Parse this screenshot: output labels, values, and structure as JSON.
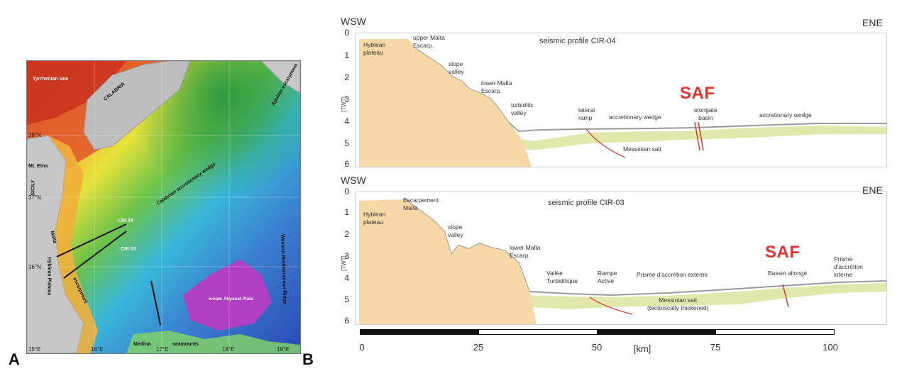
{
  "panels": {
    "a_letter": "A",
    "b_letter": "B"
  },
  "map": {
    "labels": {
      "tyrrhenian": "Tyrrhenian Sea",
      "calabria": "CALABRIA",
      "sicily": "SICILY",
      "etna": "Mt. Etna",
      "malta": "Malta",
      "hyblean": "Hyblean Plateau",
      "cir04": "CIR 04",
      "cir03": "CIR 03",
      "calabrian_wedge": "Calabrian accretionary wedge",
      "ionian_plain": "Ionian Abyssal Plain",
      "medina": "Medina",
      "seamounts": "seamounts",
      "apulian": "Apulian escarpment",
      "mediterranean_ridge": "Western Mediterranean Ridge",
      "escarpment": "escarpment"
    },
    "lat_labels": [
      "38°N",
      "37°N",
      "36°N"
    ],
    "lon_labels": [
      "15°E",
      "16°E",
      "17°E",
      "18°E",
      "19°E"
    ]
  },
  "profile1": {
    "title": "seismic profile CIR-04",
    "dir_left": "WSW",
    "dir_right": "ENE",
    "axis_label": "[TWT]",
    "ticks": [
      "0",
      "1",
      "2",
      "3",
      "4",
      "5",
      "6"
    ],
    "labels": {
      "hyblean": "Hyblean\nplateau",
      "upper_malta": "upper Malta\nEscarp.",
      "slope_valley": "slope\nvalley",
      "lower_malta": "lower Malta\nEscarp.",
      "turbiditic": "turbiditic\nvalley",
      "lateral_ramp": "lateral\nramp",
      "accretionary1": "accretionary wedge",
      "elongate_basin": "elongate\nbasin",
      "accretionary2": "accretionary wedge",
      "messinian": "Messinian salt"
    },
    "saf": "SAF"
  },
  "profile2": {
    "title": "seismic profile CIR-03",
    "dir_left": "WSW",
    "dir_right": "ENE",
    "axis_label": "[TWT]",
    "ticks": [
      "0",
      "1",
      "2",
      "3",
      "4",
      "5",
      "6"
    ],
    "labels": {
      "hyblean": "Hyblean\nplateau",
      "escarpement": "Escarpement\nMalta",
      "slope_valley": "slope\nvalley",
      "lower_malta": "lower Malta\nEscarp.",
      "vallee": "Vallée\nTurbiditique",
      "rampe": "Rampe\nActive",
      "prisme_externe": "Prisme d'accrétion externe",
      "bassin": "Bassin allongé",
      "prisme_interne": "Prisme\nd'accrétion\ninterne",
      "messinian": "Messinian salt\n(tectonically thickened)"
    },
    "saf": "SAF"
  },
  "scale": {
    "ticks": [
      "0",
      "25",
      "50",
      "75",
      "100"
    ],
    "unit": "[km]"
  },
  "colors": {
    "plateau": "#f6d7a6",
    "sediment": "#dfe7a7",
    "saf": "#e3312d"
  }
}
